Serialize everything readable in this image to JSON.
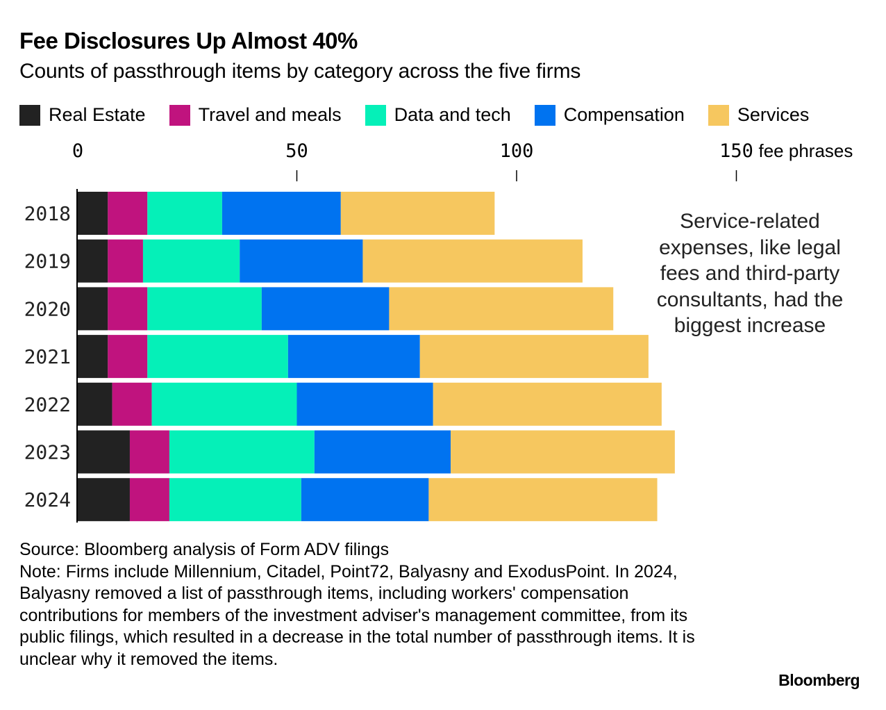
{
  "title": "Fee Disclosures Up Almost 40%",
  "subtitle": "Counts of passthrough items by category across the five firms",
  "annotation": "Service-related expenses, like legal fees and third-party consultants, had the biggest increase",
  "footer": {
    "source": "Source: Bloomberg analysis of Form ADV filings",
    "note": "Note: Firms include Millennium, Citadel, Point72, Balyasny and ExodusPoint. In 2024, Balyasny removed a list of passthrough items, including workers' compensation contributions for members of the investment adviser's management committee, from its public filings, which resulted in a decrease in the total number of passthrough items. It is unclear why it removed the items."
  },
  "brand": "Bloomberg",
  "chart_data": {
    "type": "bar",
    "orientation": "horizontal",
    "stacked": true,
    "categories": [
      "2018",
      "2019",
      "2020",
      "2021",
      "2022",
      "2023",
      "2024"
    ],
    "series": [
      {
        "name": "Real Estate",
        "color": "#222222",
        "values": [
          7,
          7,
          7,
          7,
          8,
          12,
          12
        ]
      },
      {
        "name": "Travel and meals",
        "color": "#c0137e",
        "values": [
          9,
          8,
          9,
          9,
          9,
          9,
          9
        ]
      },
      {
        "name": "Data and tech",
        "color": "#05f0b8",
        "values": [
          17,
          22,
          26,
          32,
          33,
          33,
          30
        ]
      },
      {
        "name": "Compensation",
        "color": "#0073f0",
        "values": [
          27,
          28,
          29,
          30,
          31,
          31,
          29
        ]
      },
      {
        "name": "Services",
        "color": "#f6c75f",
        "values": [
          35,
          50,
          51,
          52,
          52,
          51,
          52
        ]
      }
    ],
    "x_ticks": [
      0,
      50,
      100,
      150
    ],
    "x_unit": "fee phrases",
    "xlim": [
      0,
      150
    ],
    "legend": "top",
    "grid": false
  }
}
